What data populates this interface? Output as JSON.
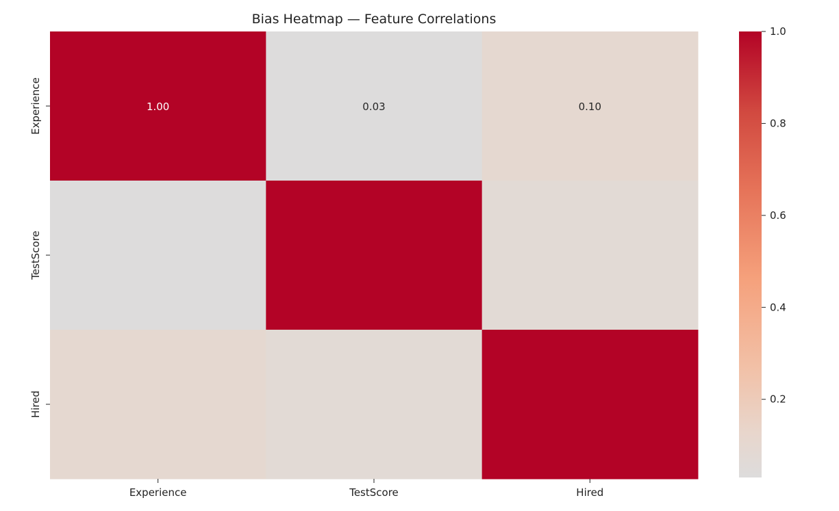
{
  "chart_data": {
    "type": "heatmap",
    "title": "Bias Heatmap — Feature Correlations",
    "row_labels": [
      "Experience",
      "TestScore",
      "Hired"
    ],
    "col_labels": [
      "Experience",
      "TestScore",
      "Hired"
    ],
    "values": [
      [
        1.0,
        0.03,
        0.1
      ],
      [
        0.03,
        1.0,
        0.07
      ],
      [
        0.1,
        0.07,
        1.0
      ]
    ],
    "annotations": [
      [
        "1.00",
        "0.03",
        "0.10"
      ],
      [
        "",
        "",
        ""
      ],
      [
        "",
        "",
        ""
      ]
    ],
    "colorbar": {
      "range": [
        0.03,
        1.0
      ],
      "ticks": [
        0.2,
        0.4,
        0.6,
        0.8,
        1.0
      ],
      "tick_labels": [
        "0.2",
        "0.4",
        "0.6",
        "0.8",
        "1.0"
      ]
    },
    "colormap": "coolwarm (upper half)"
  }
}
